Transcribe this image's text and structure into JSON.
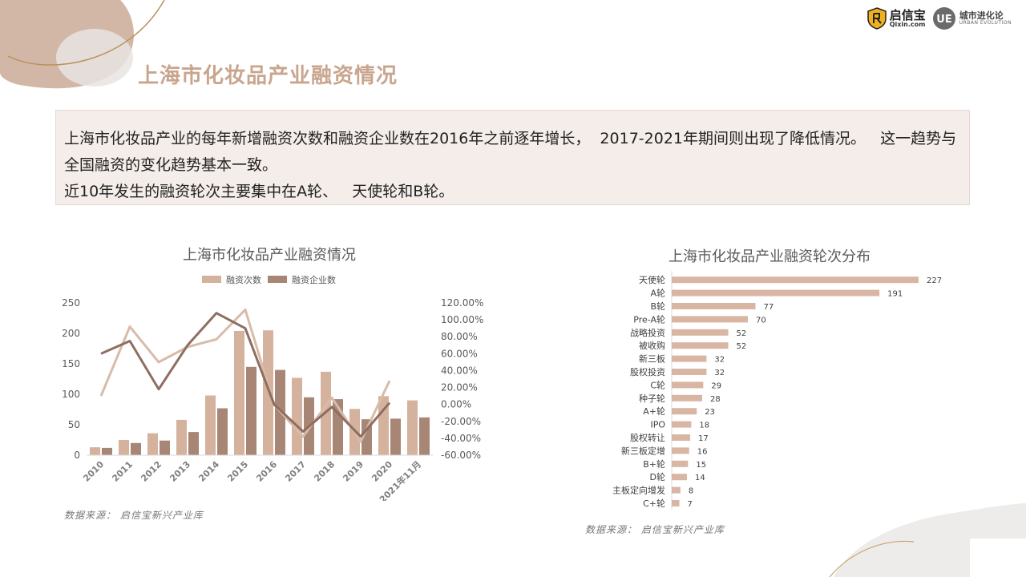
{
  "brand": {
    "logo1_main": "启信宝",
    "logo1_sub": "Qixin.com",
    "logo2_mark": "UE",
    "logo2_main": "城市进化论",
    "logo2_sub": "URBAN EVOLUTION"
  },
  "page": {
    "title": "上海市化妆品产业融资情况"
  },
  "summary": {
    "line1": "上海市化妆品产业的每年新增融资次数和融资企业数在2016年之前逐年增长，  2017-2021年期间则出现了降低情况。   这一趋势与全国融资的变化趋势基本一致。",
    "line2": "近10年发生的融资轮次主要集中在A轮、   天使轮和B轮。"
  },
  "colors": {
    "title": "#c9a58e",
    "bar_light": "#d5b29d",
    "bar_dark": "#a78676",
    "line_light": "#d8bba9",
    "line_dark": "#8f6e62",
    "round_bar": "#d9b6a3"
  },
  "sources": {
    "left": "数据来源：  启信宝新兴产业库",
    "right": "数据来源：  启信宝新兴产业库"
  },
  "chart_data": [
    {
      "type": "bar",
      "title": "上海市化妆品产业融资情况",
      "categories": [
        "2010",
        "2011",
        "2012",
        "2013",
        "2014",
        "2015",
        "2016",
        "2017",
        "2018",
        "2019",
        "2020",
        "2021年11月"
      ],
      "series": [
        {
          "name": "融资次数",
          "values": [
            13,
            25,
            36,
            58,
            98,
            204,
            205,
            127,
            137,
            76,
            97,
            90
          ]
        },
        {
          "name": "融资企业数",
          "values": [
            12,
            20,
            24,
            38,
            77,
            145,
            140,
            95,
            92,
            59,
            60,
            62
          ]
        }
      ],
      "line_series": [
        {
          "values": [
            0.1,
            0.92,
            0.5,
            0.68,
            0.77,
            1.12,
            0.0,
            -0.38,
            0.08,
            -0.44,
            0.28
          ]
        },
        {
          "values": [
            0.6,
            0.75,
            0.18,
            0.7,
            1.08,
            0.9,
            0.0,
            -0.32,
            -0.03,
            -0.38,
            0.02
          ]
        }
      ],
      "ylim": [
        0,
        250
      ],
      "yticks": [
        "250",
        "200",
        "150",
        "100",
        "50",
        "0"
      ],
      "y2lim": [
        -0.6,
        1.2
      ],
      "y2ticks": [
        "120.00%",
        "100.00%",
        "80.00%",
        "60.00%",
        "40.00%",
        "20.00%",
        "0.00%",
        "-20.00%",
        "-40.00%",
        "-60.00%"
      ],
      "legend": "top"
    },
    {
      "type": "bar",
      "orientation": "horizontal",
      "title": "上海市化妆品产业融资轮次分布",
      "categories": [
        "天使轮",
        "A轮",
        "B轮",
        "Pre-A轮",
        "战略投资",
        "被收购",
        "新三板",
        "股权投资",
        "C轮",
        "种子轮",
        "A+轮",
        "IPO",
        "股权转让",
        "新三板定增",
        "B+轮",
        "D轮",
        "主板定向增发",
        "C+轮"
      ],
      "values": [
        227,
        191,
        77,
        70,
        52,
        52,
        32,
        32,
        29,
        28,
        23,
        18,
        17,
        16,
        15,
        14,
        8,
        7
      ],
      "labels": [
        "227",
        "191",
        "77",
        "70",
        "52",
        "52",
        "32",
        "32",
        "29",
        "28",
        "23",
        "18",
        "17",
        "16",
        "15",
        "14",
        "8",
        "7"
      ]
    }
  ]
}
